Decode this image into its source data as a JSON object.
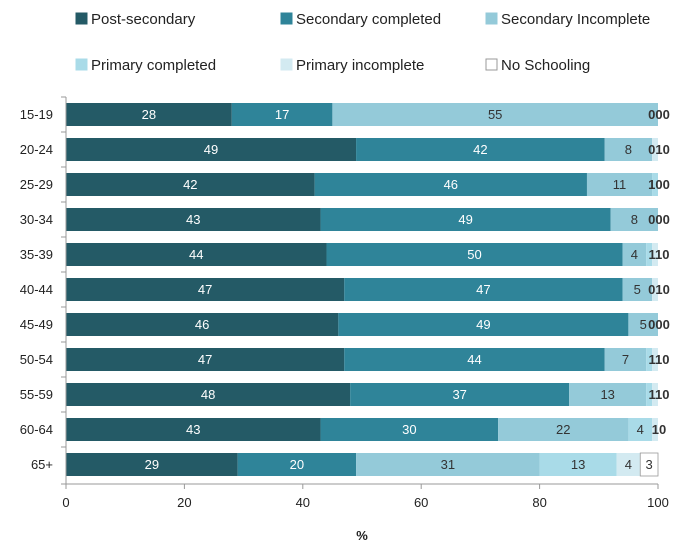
{
  "chart_data": {
    "type": "bar",
    "orientation": "horizontal",
    "stacked": true,
    "categories": [
      "15-19",
      "20-24",
      "25-29",
      "30-34",
      "35-39",
      "40-44",
      "45-49",
      "50-54",
      "55-59",
      "60-64",
      "65+"
    ],
    "series": [
      {
        "name": "Post-secondary",
        "color": "#245a66",
        "label_color": "#ffffff",
        "values": [
          28,
          49,
          42,
          43,
          44,
          47,
          46,
          47,
          48,
          43,
          29
        ]
      },
      {
        "name": "Secondary completed",
        "color": "#2f8499",
        "label_color": "#ffffff",
        "values": [
          17,
          42,
          46,
          49,
          50,
          47,
          49,
          44,
          37,
          30,
          20
        ]
      },
      {
        "name": "Secondary Incomplete",
        "color": "#94cad9",
        "label_color": "#333333",
        "values": [
          55,
          8,
          11,
          8,
          4,
          5,
          5,
          7,
          13,
          22,
          31
        ]
      },
      {
        "name": "Primary completed",
        "color": "#a9dbe8",
        "label_color": "#333333",
        "values": [
          0,
          0,
          1,
          0,
          1,
          0,
          0,
          1,
          1,
          4,
          13
        ]
      },
      {
        "name": "Primary incomplete",
        "color": "#d3eaf1",
        "label_color": "#333333",
        "values": [
          0,
          1,
          0,
          0,
          1,
          1,
          0,
          1,
          1,
          1,
          4
        ]
      },
      {
        "name": "No Schooling",
        "color": "#ffffff",
        "label_color": "#333333",
        "values": [
          0,
          0,
          0,
          0,
          0,
          0,
          0,
          0,
          0,
          0,
          3
        ]
      }
    ],
    "xlim": [
      0,
      100
    ],
    "xticks": [
      0,
      20,
      40,
      60,
      80,
      100
    ],
    "xlabel": "%",
    "ylabel": "",
    "title": "",
    "legend_position": "top",
    "grid": false
  }
}
